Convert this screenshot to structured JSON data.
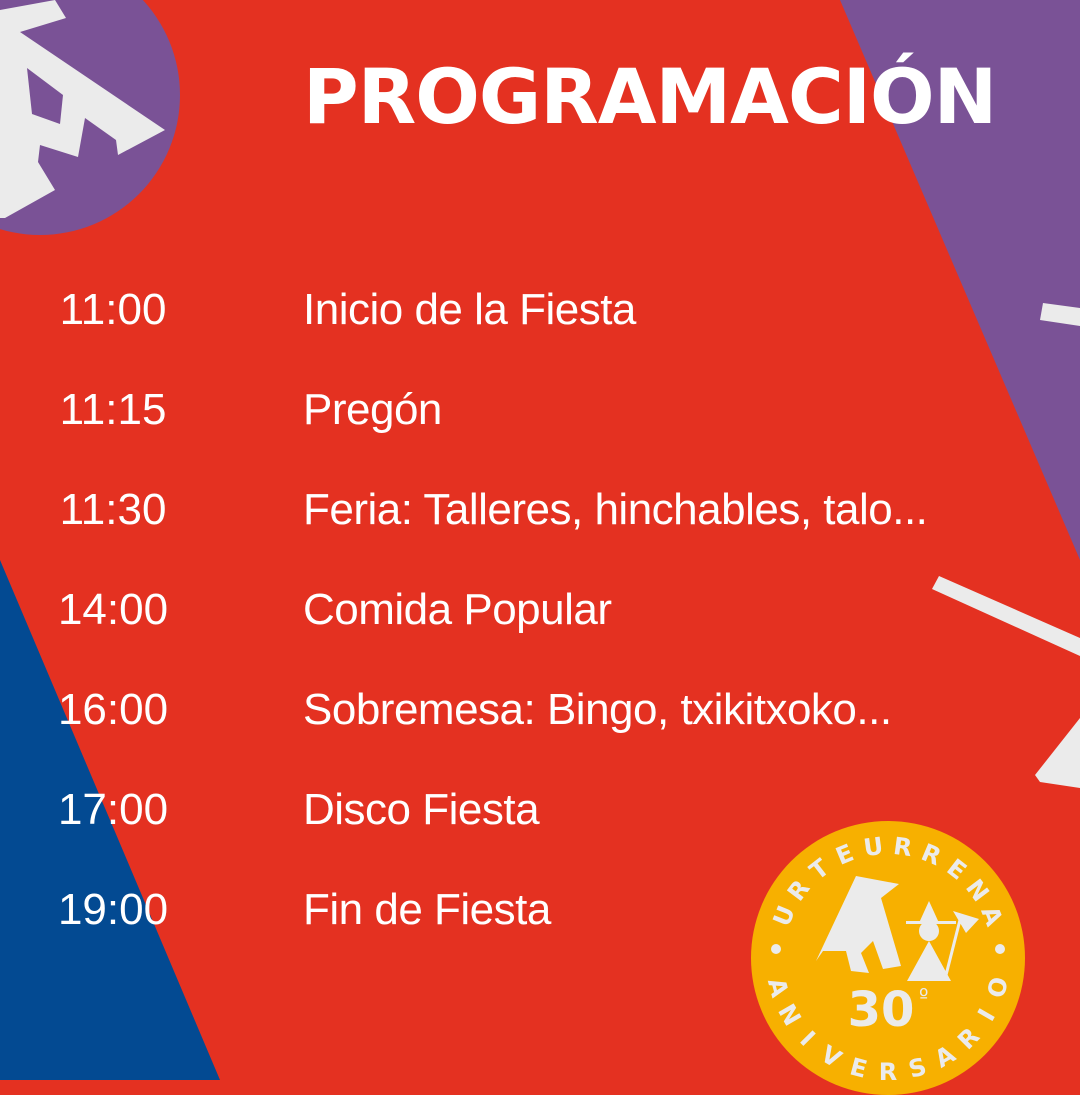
{
  "title": "PROGRAMACIÓN",
  "schedule": [
    {
      "time": "11:00",
      "activity": "Inicio de la Fiesta"
    },
    {
      "time": "11:15",
      "activity": "Pregón"
    },
    {
      "time": "11:30",
      "activity": "Feria: Talleres, hinchables, talo..."
    },
    {
      "time": "14:00",
      "activity": "Comida Popular"
    },
    {
      "time": "16:00",
      "activity": "Sobremesa: Bingo, txikitxoko..."
    },
    {
      "time": "17:00",
      "activity": "Disco Fiesta"
    },
    {
      "time": "19:00",
      "activity": "Fin de Fiesta"
    }
  ],
  "badge": {
    "top_text": "URTEURRENA",
    "bottom_text": "ANIVERSARIO",
    "number": "30",
    "ordinal": "º"
  },
  "colors": {
    "red": "#E43121",
    "purple": "#7A5296",
    "blue": "#034A92",
    "yellow": "#F7B000",
    "white": "#EBEBEB"
  }
}
